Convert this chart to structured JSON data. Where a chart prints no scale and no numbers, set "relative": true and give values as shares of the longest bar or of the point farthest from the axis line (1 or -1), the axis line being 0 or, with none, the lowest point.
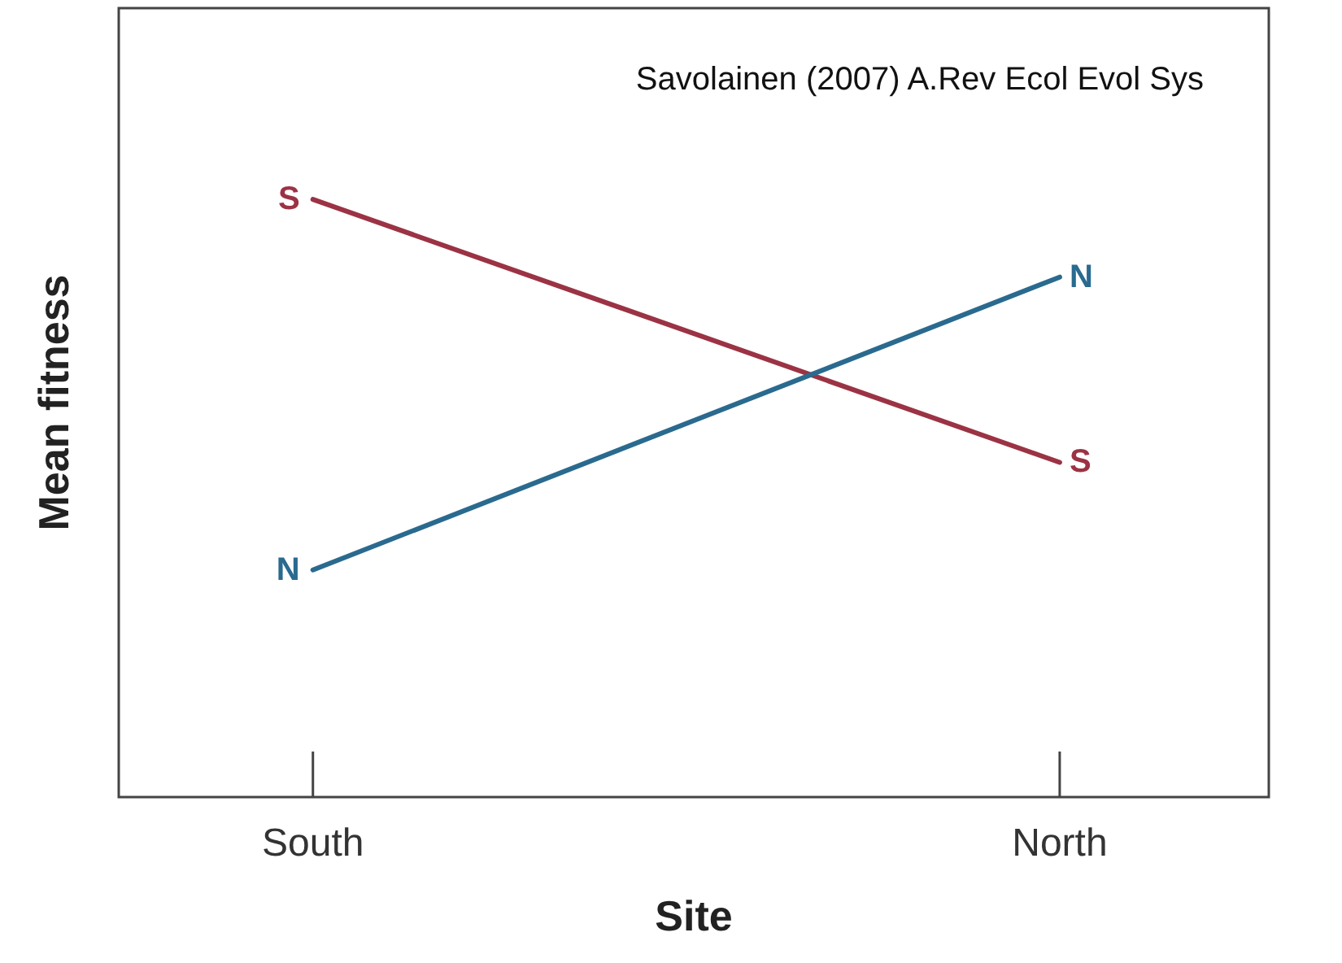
{
  "chart_data": {
    "type": "line",
    "relative": true,
    "xlabel": "Site",
    "ylabel": "Mean fitness",
    "categories": [
      "South",
      "North"
    ],
    "annotations": [
      "Savolainen (2007) A.Rev Ecol Evol Sys"
    ],
    "series": [
      {
        "name": "S",
        "color": "#9b3344",
        "values": [
          1,
          0.56
        ]
      },
      {
        "name": "N",
        "color": "#2a6a8f",
        "values": [
          0.38,
          0.87
        ]
      }
    ]
  }
}
